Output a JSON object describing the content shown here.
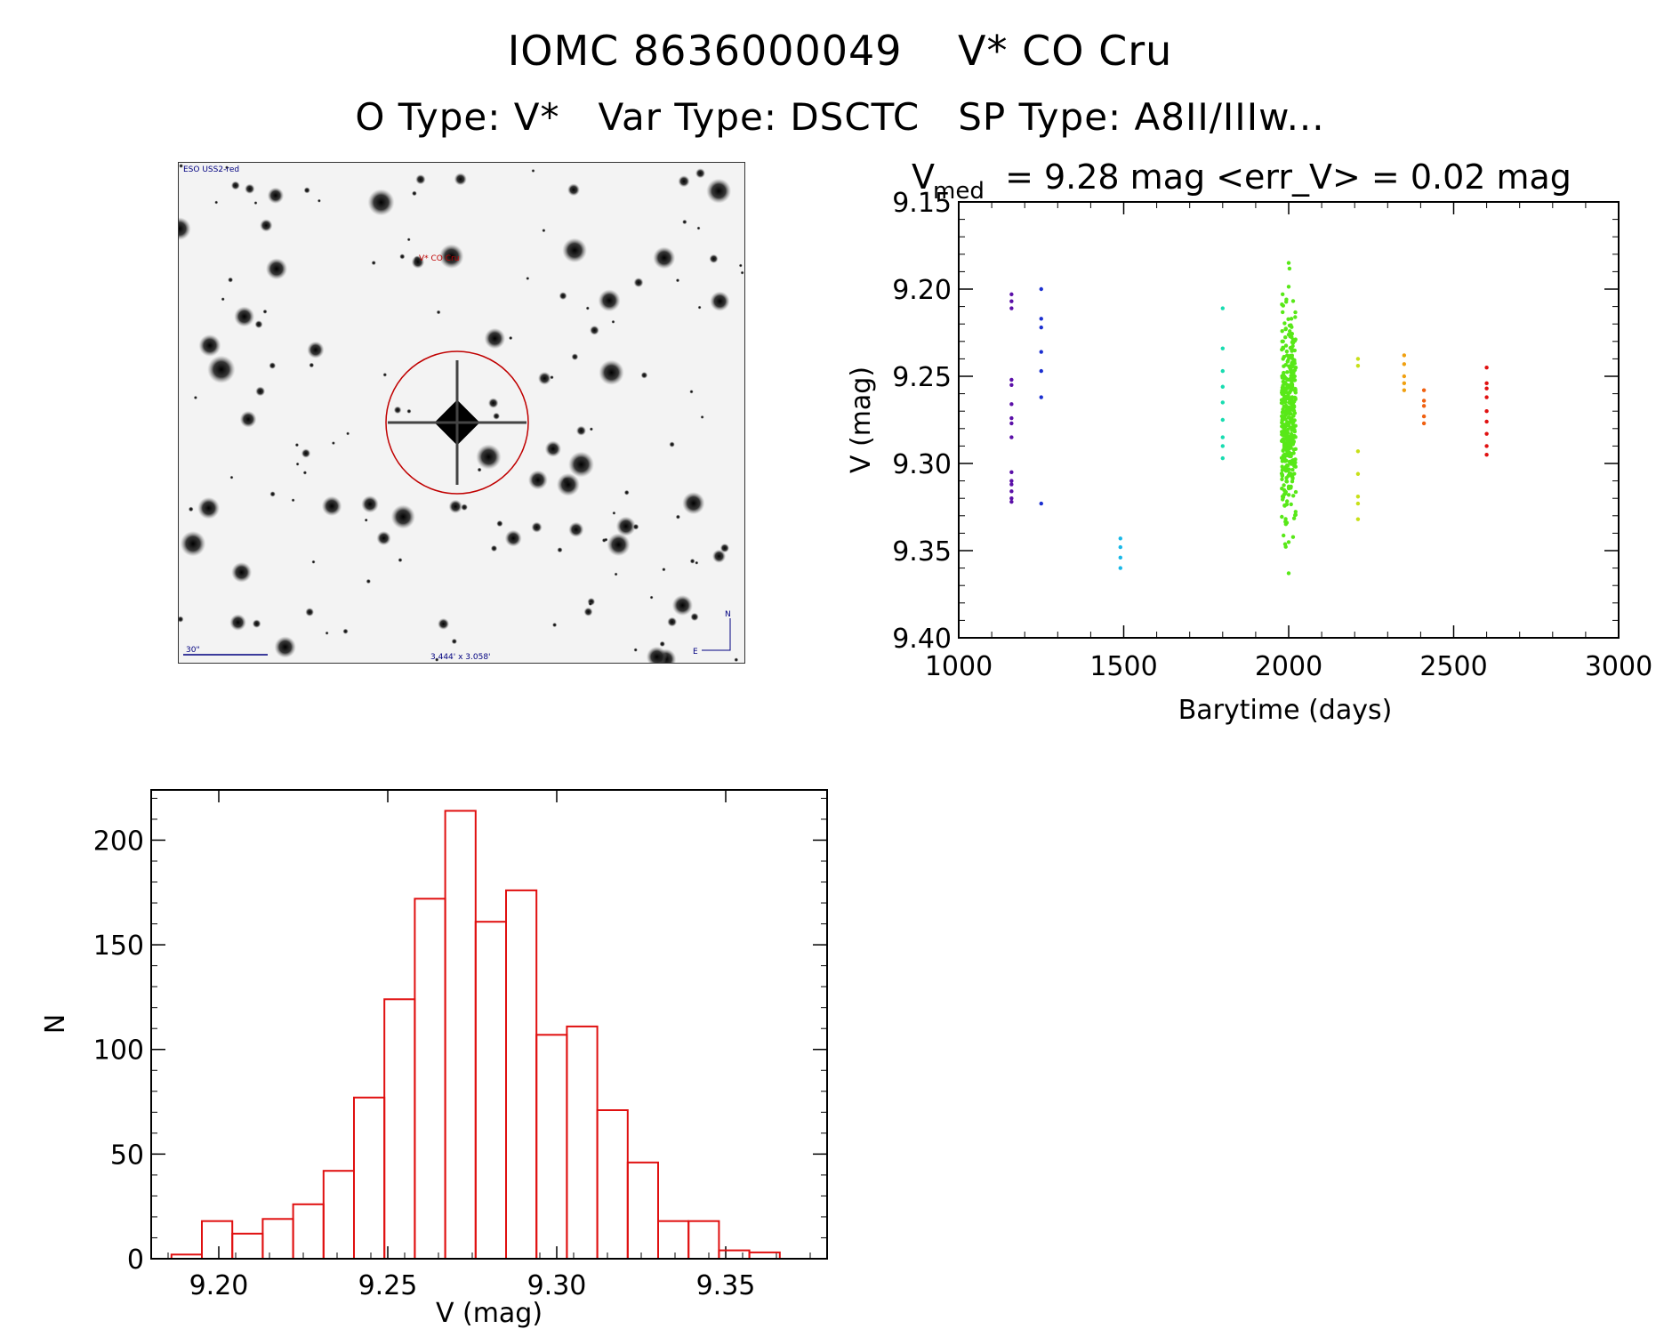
{
  "header": {
    "title": "IOMC 8636000049    V* CO Cru",
    "subtitle": "O Type: V*   Var Type: DSCTC   SP Type: A8II/IIIw..."
  },
  "finder_chart": {
    "survey_label": "ESO USS2-red",
    "target_label": "V* CO Cru",
    "scale_label": "30\"",
    "fov_label": "3.444' x 3.058'",
    "north_label": "N",
    "east_label": "E",
    "circle_color": "#c00000"
  },
  "chart_data": [
    {
      "type": "scatter",
      "title_prefix": "V",
      "title_subscript": "med",
      "title_rest": " = 9.28 mag <err_V> = 0.02 mag",
      "xlabel": "Barytime (days)",
      "ylabel": "V (mag)",
      "xlim": [
        1000,
        3000
      ],
      "ylim": [
        9.4,
        9.15
      ],
      "y_inverted": true,
      "xticks": [
        "1000",
        "1500",
        "2000",
        "2500",
        "3000"
      ],
      "yticks": [
        "9.15",
        "9.20",
        "9.25",
        "9.30",
        "9.35",
        "9.40"
      ],
      "groups": [
        {
          "color": "#5b10a8",
          "x": 1160,
          "y": [
            9.203,
            9.207,
            9.211,
            9.252,
            9.255,
            9.266,
            9.274,
            9.277,
            9.285,
            9.305,
            9.31,
            9.312,
            9.316,
            9.32,
            9.322
          ]
        },
        {
          "color": "#1b2fd0",
          "x": 1250,
          "y": [
            9.2,
            9.217,
            9.222,
            9.236,
            9.247,
            9.262,
            9.323
          ]
        },
        {
          "color": "#18b8e8",
          "x": 1490,
          "y": [
            9.343,
            9.348,
            9.354,
            9.36
          ]
        },
        {
          "color": "#18dcb0",
          "x": 1800,
          "y": [
            9.211,
            9.234,
            9.247,
            9.256,
            9.265,
            9.275,
            9.285,
            9.29,
            9.297
          ]
        },
        {
          "color": "#58e818",
          "x": 2000,
          "y_range": [
            9.185,
            9.363
          ]
        },
        {
          "color": "#c8e018",
          "x": 2210,
          "y": [
            9.24,
            9.244,
            9.293,
            9.306,
            9.319,
            9.323,
            9.332
          ]
        },
        {
          "color": "#f0a010",
          "x": 2350,
          "y": [
            9.238,
            9.243,
            9.25,
            9.254,
            9.258
          ]
        },
        {
          "color": "#f06010",
          "x": 2410,
          "y": [
            9.258,
            9.264,
            9.267,
            9.273,
            9.277
          ]
        },
        {
          "color": "#e01010",
          "x": 2600,
          "y": [
            9.245,
            9.254,
            9.257,
            9.262,
            9.27,
            9.276,
            9.283,
            9.29,
            9.295
          ]
        }
      ]
    },
    {
      "type": "bar",
      "subtype": "histogram",
      "xlabel": "V (mag)",
      "ylabel": "N",
      "xlim": [
        9.18,
        9.38
      ],
      "ylim": [
        0,
        224
      ],
      "xticks": [
        "9.20",
        "9.25",
        "9.30",
        "9.35"
      ],
      "yticks": [
        "0",
        "50",
        "100",
        "150",
        "200"
      ],
      "bar_color": "#e01010",
      "bin_width": 0.009,
      "bin_starts": [
        9.186,
        9.195,
        9.204,
        9.213,
        9.222,
        9.231,
        9.24,
        9.249,
        9.258,
        9.267,
        9.276,
        9.285,
        9.294,
        9.303,
        9.312,
        9.321,
        9.33,
        9.339,
        9.348,
        9.357
      ],
      "values": [
        2,
        18,
        12,
        19,
        26,
        42,
        77,
        124,
        172,
        214,
        161,
        176,
        107,
        111,
        71,
        46,
        18,
        18,
        4,
        3
      ]
    }
  ]
}
